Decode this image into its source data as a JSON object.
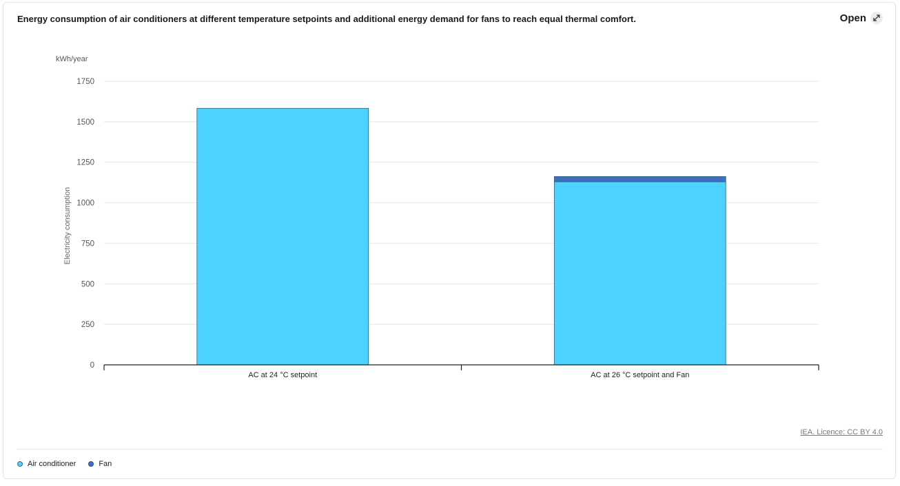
{
  "header": {
    "title": "Energy consumption of air conditioners at different temperature setpoints and additional energy demand for fans to reach equal thermal comfort.",
    "open_label": "Open"
  },
  "source": "IEA. Licence: CC BY 4.0",
  "legend": [
    {
      "label": "Air conditioner",
      "color": "#4dd2ff"
    },
    {
      "label": "Fan",
      "color": "#3f6fc4"
    }
  ],
  "chart_data": {
    "type": "bar",
    "stacked": true,
    "categories": [
      "AC at 24 °C setpoint",
      "AC at 26 °C setpoint and Fan"
    ],
    "series": [
      {
        "name": "Air conditioner",
        "color": "#4dd2ff",
        "values": [
          1583,
          1130
        ]
      },
      {
        "name": "Fan",
        "color": "#3f6fc4",
        "values": [
          0,
          32
        ]
      }
    ],
    "ylabel": "Electricity consumption",
    "unit": "kWh/year",
    "ylim": [
      0,
      1750
    ],
    "yticks": [
      0,
      250,
      500,
      750,
      1000,
      1250,
      1500,
      1750
    ],
    "grid": true,
    "legend_position": "bottom-left"
  }
}
